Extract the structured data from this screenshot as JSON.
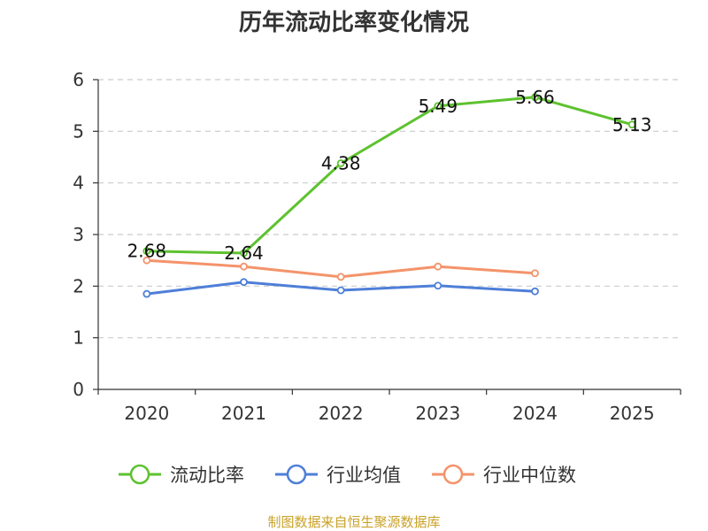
{
  "chart_data": {
    "type": "line",
    "title": "历年流动比率变化情况",
    "categories": [
      "2020",
      "2021",
      "2022",
      "2023",
      "2024",
      "2025"
    ],
    "ylim": [
      0,
      6
    ],
    "yticks": [
      "0",
      "1",
      "2",
      "3",
      "4",
      "5",
      "6"
    ],
    "grid": true,
    "legend_position": "bottom",
    "series": [
      {
        "name": "流动比率",
        "color": "#5dc22f",
        "values": [
          2.68,
          2.64,
          4.38,
          5.49,
          5.66,
          5.13
        ],
        "labels": [
          "2.68",
          "2.64",
          "4.38",
          "5.49",
          "5.66",
          "5.13"
        ],
        "show_labels": true
      },
      {
        "name": "行业均值",
        "color": "#4e7fd8",
        "values": [
          1.85,
          2.08,
          1.92,
          2.01,
          1.9,
          null
        ],
        "show_labels": false
      },
      {
        "name": "行业中位数",
        "color": "#f4936a",
        "values": [
          2.5,
          2.38,
          2.18,
          2.38,
          2.25,
          null
        ],
        "show_labels": false
      }
    ],
    "source": "制图数据来自恒生聚源数据库"
  }
}
